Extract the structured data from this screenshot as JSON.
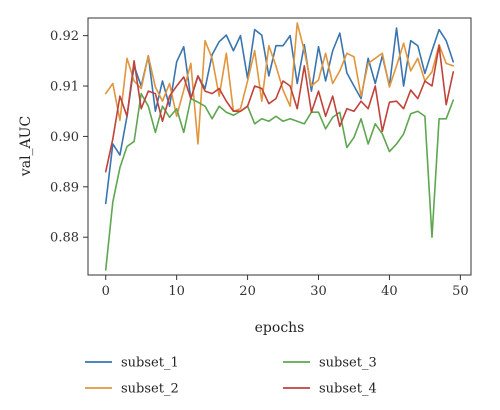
{
  "chart_data": {
    "type": "line",
    "title": "",
    "xlabel": "epochs",
    "ylabel": "val_AUC",
    "xlim": [
      -2.5,
      51.5
    ],
    "ylim": [
      0.8725,
      0.9235
    ],
    "x_ticks": [
      "0",
      "10",
      "20",
      "30",
      "40",
      "50"
    ],
    "y_ticks": [
      "0.88",
      "0.89",
      "0.90",
      "0.91",
      "0.92"
    ],
    "grid": false,
    "legend_placement": "below",
    "x": [
      0,
      1,
      2,
      3,
      4,
      5,
      6,
      7,
      8,
      9,
      10,
      11,
      12,
      13,
      14,
      15,
      16,
      17,
      18,
      19,
      20,
      21,
      22,
      23,
      24,
      25,
      26,
      27,
      28,
      29,
      30,
      31,
      32,
      33,
      34,
      35,
      36,
      37,
      38,
      39,
      40,
      41,
      42,
      43,
      44,
      45,
      46,
      47,
      48,
      49
    ],
    "series": [
      {
        "name": "subset_1",
        "color": "#3a75b0",
        "values": [
          0.8867,
          0.8985,
          0.8963,
          0.904,
          0.914,
          0.91,
          0.916,
          0.905,
          0.911,
          0.906,
          0.9148,
          0.9178,
          0.9075,
          0.912,
          0.9095,
          0.9162,
          0.9188,
          0.9201,
          0.917,
          0.92,
          0.9115,
          0.9212,
          0.9201,
          0.912,
          0.918,
          0.918,
          0.92,
          0.9105,
          0.9182,
          0.909,
          0.9178,
          0.911,
          0.917,
          0.9205,
          0.9126,
          0.91,
          0.9075,
          0.9155,
          0.9105,
          0.916,
          0.91,
          0.9215,
          0.91,
          0.919,
          0.918,
          0.9125,
          0.917,
          0.9212,
          0.919,
          0.9148
        ]
      },
      {
        "name": "subset_2",
        "color": "#e1953c",
        "values": [
          0.9085,
          0.9105,
          0.9032,
          0.9155,
          0.911,
          0.9095,
          0.916,
          0.9098,
          0.907,
          0.9105,
          0.904,
          0.9092,
          0.9145,
          0.8985,
          0.919,
          0.9155,
          0.908,
          0.9165,
          0.905,
          0.9055,
          0.911,
          0.917,
          0.907,
          0.918,
          0.914,
          0.9092,
          0.906,
          0.9225,
          0.917,
          0.91,
          0.9112,
          0.9165,
          0.9105,
          0.913,
          0.9165,
          0.9158,
          0.908,
          0.9145,
          0.9155,
          0.9165,
          0.9098,
          0.914,
          0.9185,
          0.913,
          0.9155,
          0.911,
          0.9128,
          0.9182,
          0.9145,
          0.914
        ]
      },
      {
        "name": "subset_3",
        "color": "#5ea650",
        "values": [
          0.8735,
          0.887,
          0.8938,
          0.898,
          0.899,
          0.9085,
          0.906,
          0.9008,
          0.906,
          0.9038,
          0.9055,
          0.9008,
          0.9075,
          0.9068,
          0.906,
          0.9035,
          0.906,
          0.9048,
          0.9042,
          0.905,
          0.906,
          0.9025,
          0.9035,
          0.903,
          0.904,
          0.903,
          0.9035,
          0.903,
          0.9025,
          0.9048,
          0.9048,
          0.9015,
          0.9038,
          0.9048,
          0.8978,
          0.8998,
          0.9035,
          0.8985,
          0.9025,
          0.9005,
          0.897,
          0.8985,
          0.9005,
          0.9045,
          0.905,
          0.904,
          0.88,
          0.9035,
          0.9035,
          0.9072
        ]
      },
      {
        "name": "subset_4",
        "color": "#c0433b",
        "values": [
          0.893,
          0.8995,
          0.908,
          0.904,
          0.915,
          0.9055,
          0.909,
          0.9085,
          0.903,
          0.908,
          0.91,
          0.9118,
          0.9075,
          0.912,
          0.909,
          0.9085,
          0.9095,
          0.907,
          0.905,
          0.905,
          0.906,
          0.91,
          0.9095,
          0.9065,
          0.9075,
          0.911,
          0.91,
          0.9055,
          0.914,
          0.9048,
          0.909,
          0.904,
          0.908,
          0.902,
          0.9055,
          0.905,
          0.907,
          0.9055,
          0.91,
          0.901,
          0.9068,
          0.907,
          0.9055,
          0.9092,
          0.9075,
          0.911,
          0.91,
          0.918,
          0.9063,
          0.9128
        ]
      }
    ]
  }
}
